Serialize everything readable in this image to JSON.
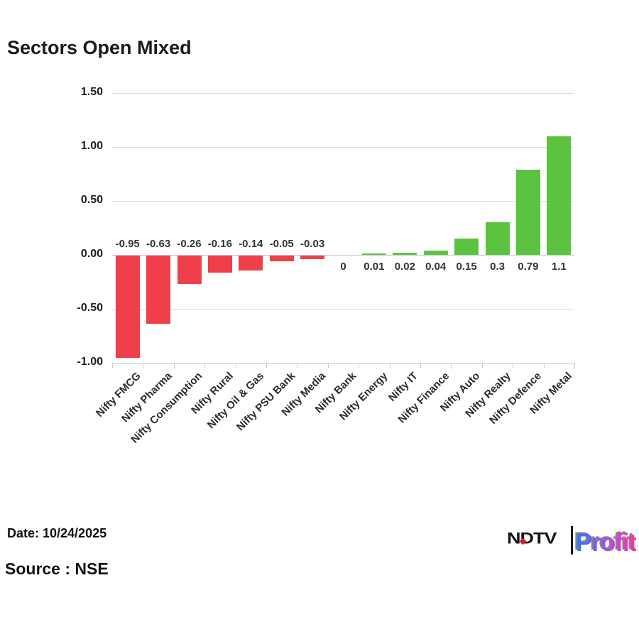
{
  "title": "Sectors Open Mixed",
  "footer": {
    "date": "Date: 10/24/2025",
    "source": "Source : NSE"
  },
  "logo": {
    "ndtv": "NDTV",
    "separator": "|",
    "profit": "Profit"
  },
  "chart_data": {
    "type": "bar",
    "title": "Sectors Open Mixed",
    "xlabel": "",
    "ylabel": "",
    "categories": [
      "Nifty FMCG",
      "Nifty Pharma",
      "Nifty Consumption",
      "Nifty Rural",
      "Nifty Oil & Gas",
      "Nifty PSU Bank",
      "Nifty Media",
      "Nifty Bank",
      "Nifty Energy",
      "Nifty IT",
      "Nifty Finance",
      "Nifty Auto",
      "Nifty Realty",
      "Nifty Defence",
      "Nifty Metal"
    ],
    "values": [
      -0.95,
      -0.63,
      -0.26,
      -0.16,
      -0.14,
      -0.05,
      -0.03,
      0,
      0.01,
      0.02,
      0.04,
      0.15,
      0.3,
      0.79,
      1.1
    ],
    "value_labels": [
      "-0.95",
      "-0.63",
      "-0.26",
      "-0.16",
      "-0.14",
      "-0.05",
      "-0.03",
      "0",
      "0.01",
      "0.02",
      "0.04",
      "0.15",
      "0.3",
      "0.79",
      "1.1"
    ],
    "ylim": [
      -1.0,
      1.5
    ],
    "yticks": {
      "labels": [
        "1.50",
        "1.00",
        "0.50",
        "0.00",
        "-0.50",
        "-1.00"
      ],
      "values": [
        1.5,
        1.0,
        0.5,
        0.0,
        -0.5,
        -1.0
      ]
    },
    "grid": true,
    "legend": "none",
    "colors": {
      "positive_bar": "#5cc340",
      "negative_bar": "#ee3f4a",
      "gridline": "#dcdcdc",
      "axis": "#c9c9c9",
      "label_text": "#333333"
    }
  }
}
